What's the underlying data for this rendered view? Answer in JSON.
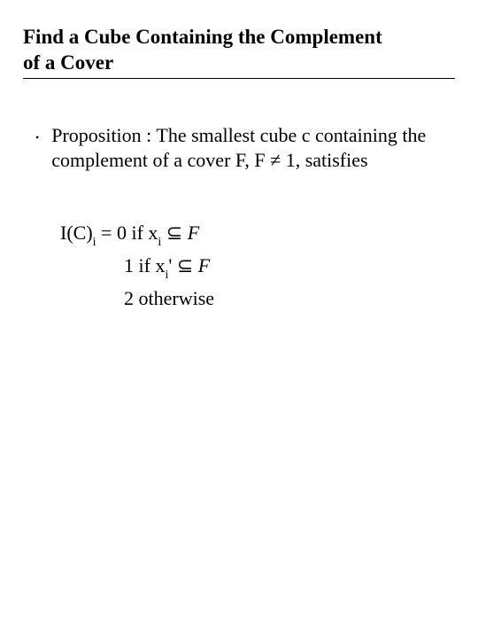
{
  "title_line1": "Find a Cube Containing the Complement",
  "title_line2": "of a Cover",
  "bullet": {
    "part1": "Proposition : The smallest cube c containing the complement of a cover F, F ",
    "neq": "≠",
    "part2": " 1, satisfies"
  },
  "defs": {
    "l1_a": "I(C)",
    "l1_sub": "i",
    "l1_b": " = 0 if x",
    "l1_sub2": "i",
    "l1_c": " ",
    "subset1": "⊆",
    "l1_F": " F",
    "l2_a": "1 if x",
    "l2_sub": "i",
    "l2_b": "' ",
    "subset2": "⊆",
    "l2_F": " F",
    "l3": "2 otherwise"
  },
  "colors": {
    "text": "#000000",
    "background": "#ffffff"
  },
  "fontsize": {
    "title": 23,
    "body": 22,
    "sub": 14
  }
}
